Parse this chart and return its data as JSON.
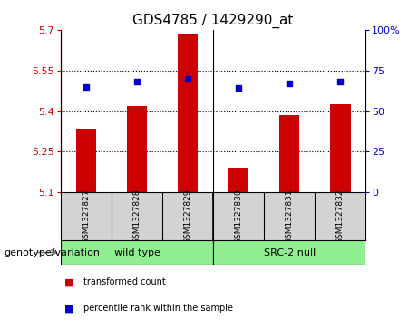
{
  "title": "GDS4785 / 1429290_at",
  "samples": [
    "GSM1327827",
    "GSM1327828",
    "GSM1327829",
    "GSM1327830",
    "GSM1327831",
    "GSM1327832"
  ],
  "bar_values": [
    5.335,
    5.42,
    5.685,
    5.19,
    5.385,
    5.425
  ],
  "percentile_values": [
    65,
    68,
    70,
    64,
    67,
    68
  ],
  "ylim_left": [
    5.1,
    5.7
  ],
  "ylim_right": [
    0,
    100
  ],
  "yticks_left": [
    5.1,
    5.25,
    5.4,
    5.55,
    5.7
  ],
  "yticks_right": [
    0,
    25,
    50,
    75,
    100
  ],
  "ytick_labels_left": [
    "5.1",
    "5.25",
    "5.4",
    "5.55",
    "5.7"
  ],
  "ytick_labels_right": [
    "0",
    "25",
    "50",
    "75",
    "100%"
  ],
  "bar_color": "#cc0000",
  "dot_color": "#0000cc",
  "wt_label": "wild type",
  "src_label": "SRC-2 null",
  "group_row_label": "genotype/variation",
  "legend_items": [
    {
      "label": "transformed count",
      "color": "#cc0000"
    },
    {
      "label": "percentile rank within the sample",
      "color": "#0000cc"
    }
  ],
  "sample_bg_color": "#d3d3d3",
  "group_color": "#90ee90",
  "plot_bg": "#ffffff",
  "title_fontsize": 11,
  "tick_fontsize": 8,
  "sample_fontsize": 6.5,
  "group_fontsize": 8,
  "legend_fontsize": 7,
  "geno_label_fontsize": 8
}
